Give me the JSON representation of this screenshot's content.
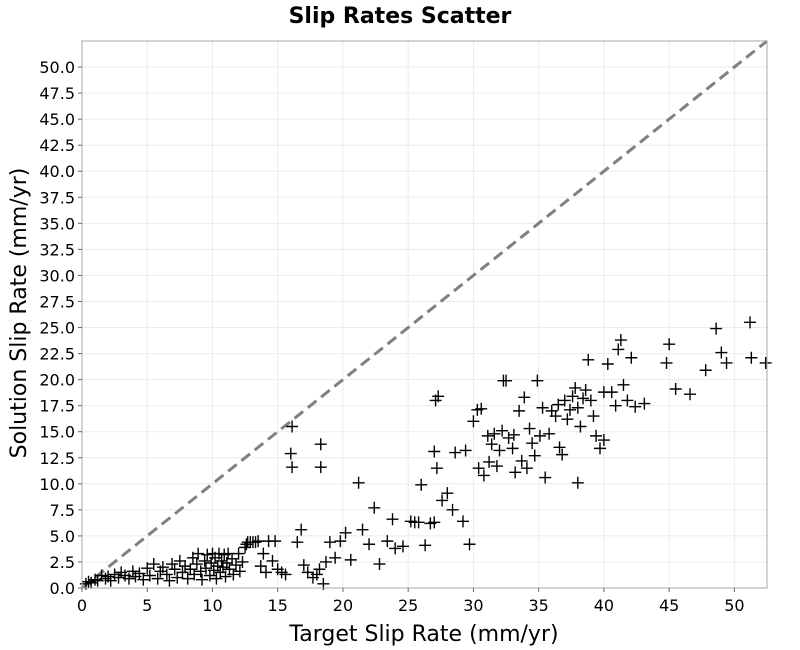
{
  "chart_data": {
    "type": "scatter",
    "title": "Slip Rates Scatter",
    "xlabel": "Target Slip Rate (mm/yr)",
    "ylabel": "Solution Slip Rate (mm/yr)",
    "xlim": [
      0,
      52.5
    ],
    "ylim": [
      0,
      52.5
    ],
    "x_ticks": [
      0,
      5,
      10,
      15,
      20,
      25,
      30,
      35,
      40,
      45,
      50
    ],
    "y_ticks": [
      0.0,
      2.5,
      5.0,
      7.5,
      10.0,
      12.5,
      15.0,
      17.5,
      20.0,
      22.5,
      25.0,
      27.5,
      30.0,
      32.5,
      35.0,
      37.5,
      40.0,
      42.5,
      45.0,
      47.5,
      50.0
    ],
    "x_tick_labels": [
      "0",
      "5",
      "10",
      "15",
      "20",
      "25",
      "30",
      "35",
      "40",
      "45",
      "50"
    ],
    "y_tick_labels": [
      "0.0",
      "2.5",
      "5.0",
      "7.5",
      "10.0",
      "12.5",
      "15.0",
      "17.5",
      "20.0",
      "22.5",
      "25.0",
      "27.5",
      "30.0",
      "32.5",
      "35.0",
      "37.5",
      "40.0",
      "42.5",
      "45.0",
      "47.5",
      "50.0"
    ],
    "grid": true,
    "marker": "plus",
    "marker_color": "#000000",
    "reference_line": {
      "style": "dashed",
      "color": "#808080",
      "points": [
        [
          0,
          0
        ],
        [
          52.5,
          52.5
        ]
      ]
    },
    "series": [
      {
        "points": [
          [
            0.3,
            0.4
          ],
          [
            0.5,
            0.6
          ],
          [
            0.7,
            0.5
          ],
          [
            1.0,
            0.8
          ],
          [
            1.2,
            0.7
          ],
          [
            1.5,
            1.2
          ],
          [
            1.8,
            0.9
          ],
          [
            2.0,
            1.1
          ],
          [
            2.2,
            0.7
          ],
          [
            2.5,
            1.3
          ],
          [
            2.8,
            1.0
          ],
          [
            3.0,
            1.5
          ],
          [
            3.3,
            1.2
          ],
          [
            3.6,
            0.9
          ],
          [
            3.9,
            1.6
          ],
          [
            4.1,
            1.1
          ],
          [
            4.4,
            1.4
          ],
          [
            4.7,
            0.8
          ],
          [
            5.0,
            1.9
          ],
          [
            5.2,
            1.2
          ],
          [
            5.5,
            2.3
          ],
          [
            5.8,
            0.9
          ],
          [
            6.0,
            1.6
          ],
          [
            6.2,
            2.0
          ],
          [
            6.5,
            1.3
          ],
          [
            6.7,
            0.7
          ],
          [
            6.9,
            2.3
          ],
          [
            7.1,
            1.8
          ],
          [
            7.3,
            1.0
          ],
          [
            7.5,
            2.6
          ],
          [
            7.7,
            1.5
          ],
          [
            7.9,
            2.1
          ],
          [
            8.1,
            0.9
          ],
          [
            8.3,
            1.8
          ],
          [
            8.5,
            2.9
          ],
          [
            8.6,
            1.3
          ],
          [
            8.8,
            2.3
          ],
          [
            8.9,
            3.3
          ],
          [
            9.1,
            1.6
          ],
          [
            9.2,
            0.8
          ],
          [
            9.4,
            2.6
          ],
          [
            9.5,
            1.9
          ],
          [
            9.6,
            3.2
          ],
          [
            9.8,
            1.2
          ],
          [
            9.9,
            2.4
          ],
          [
            10.0,
            3.3
          ],
          [
            10.1,
            1.7
          ],
          [
            10.2,
            2.9
          ],
          [
            10.3,
            0.9
          ],
          [
            10.4,
            2.1
          ],
          [
            10.5,
            3.3
          ],
          [
            10.6,
            1.5
          ],
          [
            10.7,
            2.6
          ],
          [
            10.8,
            2.0
          ],
          [
            10.9,
            3.2
          ],
          [
            11.0,
            1.1
          ],
          [
            11.1,
            2.4
          ],
          [
            11.2,
            3.3
          ],
          [
            11.3,
            1.8
          ],
          [
            11.5,
            2.8
          ],
          [
            11.6,
            1.3
          ],
          [
            11.8,
            2.2
          ],
          [
            12.0,
            3.3
          ],
          [
            12.1,
            1.6
          ],
          [
            12.3,
            2.5
          ],
          [
            12.5,
            3.9
          ],
          [
            12.6,
            4.2
          ],
          [
            12.7,
            4.4
          ],
          [
            12.9,
            4.4
          ],
          [
            13.1,
            4.4
          ],
          [
            13.3,
            4.4
          ],
          [
            13.5,
            4.5
          ],
          [
            13.7,
            2.1
          ],
          [
            13.9,
            3.3
          ],
          [
            14.1,
            1.5
          ],
          [
            14.3,
            4.5
          ],
          [
            14.6,
            2.6
          ],
          [
            14.8,
            4.5
          ],
          [
            15.0,
            1.8
          ],
          [
            15.3,
            1.5
          ],
          [
            15.6,
            1.3
          ],
          [
            16.0,
            12.9
          ],
          [
            16.1,
            15.5
          ],
          [
            16.1,
            11.6
          ],
          [
            16.5,
            4.4
          ],
          [
            16.8,
            5.6
          ],
          [
            17.0,
            2.2
          ],
          [
            17.3,
            1.5
          ],
          [
            17.7,
            1.0
          ],
          [
            18.0,
            1.3
          ],
          [
            18.2,
            1.8
          ],
          [
            18.3,
            13.8
          ],
          [
            18.3,
            11.6
          ],
          [
            18.5,
            0.4
          ],
          [
            18.7,
            2.5
          ],
          [
            19.0,
            4.4
          ],
          [
            19.4,
            2.9
          ],
          [
            19.8,
            4.5
          ],
          [
            20.2,
            5.3
          ],
          [
            20.6,
            2.7
          ],
          [
            21.2,
            10.1
          ],
          [
            21.5,
            5.6
          ],
          [
            22.0,
            4.2
          ],
          [
            22.4,
            7.7
          ],
          [
            22.8,
            2.3
          ],
          [
            23.4,
            4.5
          ],
          [
            23.8,
            6.6
          ],
          [
            24.0,
            3.8
          ],
          [
            24.6,
            4.0
          ],
          [
            25.2,
            6.4
          ],
          [
            25.5,
            6.3
          ],
          [
            25.8,
            6.3
          ],
          [
            26.0,
            9.9
          ],
          [
            26.3,
            4.1
          ],
          [
            26.7,
            6.2
          ],
          [
            27.0,
            13.1
          ],
          [
            27.0,
            6.3
          ],
          [
            27.1,
            18.0
          ],
          [
            27.2,
            11.5
          ],
          [
            27.3,
            18.4
          ],
          [
            27.6,
            8.4
          ],
          [
            28.0,
            9.1
          ],
          [
            28.4,
            7.5
          ],
          [
            28.6,
            13.0
          ],
          [
            29.2,
            6.4
          ],
          [
            29.4,
            13.2
          ],
          [
            29.7,
            4.2
          ],
          [
            30.0,
            16.0
          ],
          [
            30.3,
            17.1
          ],
          [
            30.4,
            11.5
          ],
          [
            30.6,
            17.2
          ],
          [
            30.8,
            10.8
          ],
          [
            31.1,
            14.6
          ],
          [
            31.2,
            12.1
          ],
          [
            31.4,
            13.8
          ],
          [
            31.6,
            14.8
          ],
          [
            31.8,
            11.7
          ],
          [
            32.0,
            13.2
          ],
          [
            32.2,
            15.1
          ],
          [
            32.3,
            19.9
          ],
          [
            32.5,
            19.9
          ],
          [
            32.7,
            14.4
          ],
          [
            33.0,
            13.4
          ],
          [
            33.2,
            11.1
          ],
          [
            33.5,
            17.0
          ],
          [
            33.7,
            12.2
          ],
          [
            33.9,
            18.3
          ],
          [
            34.1,
            11.5
          ],
          [
            34.3,
            15.3
          ],
          [
            34.5,
            13.9
          ],
          [
            34.7,
            12.7
          ],
          [
            34.9,
            19.9
          ],
          [
            35.1,
            14.6
          ],
          [
            35.3,
            17.3
          ],
          [
            35.5,
            10.6
          ],
          [
            35.8,
            14.8
          ],
          [
            36.0,
            17.0
          ],
          [
            36.3,
            16.5
          ],
          [
            36.6,
            13.5
          ],
          [
            36.8,
            12.8
          ],
          [
            37.0,
            18.0
          ],
          [
            37.2,
            16.2
          ],
          [
            37.4,
            17.1
          ],
          [
            37.6,
            18.4
          ],
          [
            37.8,
            19.2
          ],
          [
            38.0,
            17.3
          ],
          [
            38.2,
            15.5
          ],
          [
            38.4,
            18.2
          ],
          [
            38.6,
            19.0
          ],
          [
            38.8,
            21.9
          ],
          [
            39.0,
            18.0
          ],
          [
            39.2,
            16.5
          ],
          [
            39.4,
            14.6
          ],
          [
            39.7,
            13.4
          ],
          [
            40.0,
            18.8
          ],
          [
            40.3,
            21.5
          ],
          [
            40.6,
            18.8
          ],
          [
            40.9,
            17.5
          ],
          [
            41.1,
            22.9
          ],
          [
            41.3,
            23.8
          ],
          [
            41.5,
            19.5
          ],
          [
            41.8,
            18.0
          ],
          [
            42.1,
            22.1
          ],
          [
            42.4,
            17.4
          ],
          [
            43.1,
            17.7
          ],
          [
            44.8,
            21.6
          ],
          [
            45.0,
            23.4
          ],
          [
            45.5,
            19.1
          ],
          [
            46.6,
            18.6
          ],
          [
            47.8,
            20.9
          ],
          [
            48.6,
            24.9
          ],
          [
            49.0,
            22.6
          ],
          [
            49.4,
            21.6
          ],
          [
            51.2,
            25.5
          ],
          [
            51.3,
            22.1
          ],
          [
            52.4,
            21.6
          ],
          [
            38.0,
            10.1
          ],
          [
            40.0,
            14.2
          ],
          [
            36.5,
            17.6
          ],
          [
            33.1,
            14.7
          ]
        ]
      }
    ]
  }
}
